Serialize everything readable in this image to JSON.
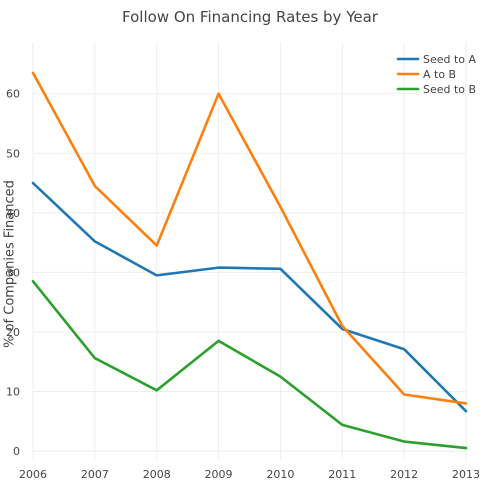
{
  "chart_data": {
    "type": "line",
    "title": "Follow On Financing Rates by Year",
    "xlabel": "",
    "ylabel": "% of Companies Financed",
    "x": [
      2006,
      2007,
      2008,
      2009,
      2010,
      2011,
      2012,
      2013
    ],
    "x_tick_labels": [
      "2006",
      "2007",
      "2008",
      "2009",
      "2010",
      "2011",
      "2012",
      "2013"
    ],
    "y_ticks": [
      0,
      10,
      20,
      30,
      40,
      50,
      60
    ],
    "y_tick_labels": [
      "0",
      "10",
      "20",
      "30",
      "40",
      "50",
      "60"
    ],
    "xlim": [
      2006,
      2013
    ],
    "ylim": [
      -1.5,
      67
    ],
    "grid": true,
    "legend_position": "top-right",
    "series": [
      {
        "name": "Seed to A",
        "color": "#1f77b4",
        "values": [
          45.0,
          35.2,
          29.5,
          30.8,
          30.6,
          20.5,
          17.1,
          6.7
        ]
      },
      {
        "name": "A to B",
        "color": "#ff7f0e",
        "values": [
          63.5,
          44.5,
          34.5,
          60.0,
          41.0,
          21.0,
          9.5,
          8.0
        ]
      },
      {
        "name": "Seed to B",
        "color": "#2ca02c",
        "values": [
          28.5,
          15.6,
          10.2,
          18.5,
          12.5,
          4.4,
          1.6,
          0.5
        ]
      }
    ]
  }
}
